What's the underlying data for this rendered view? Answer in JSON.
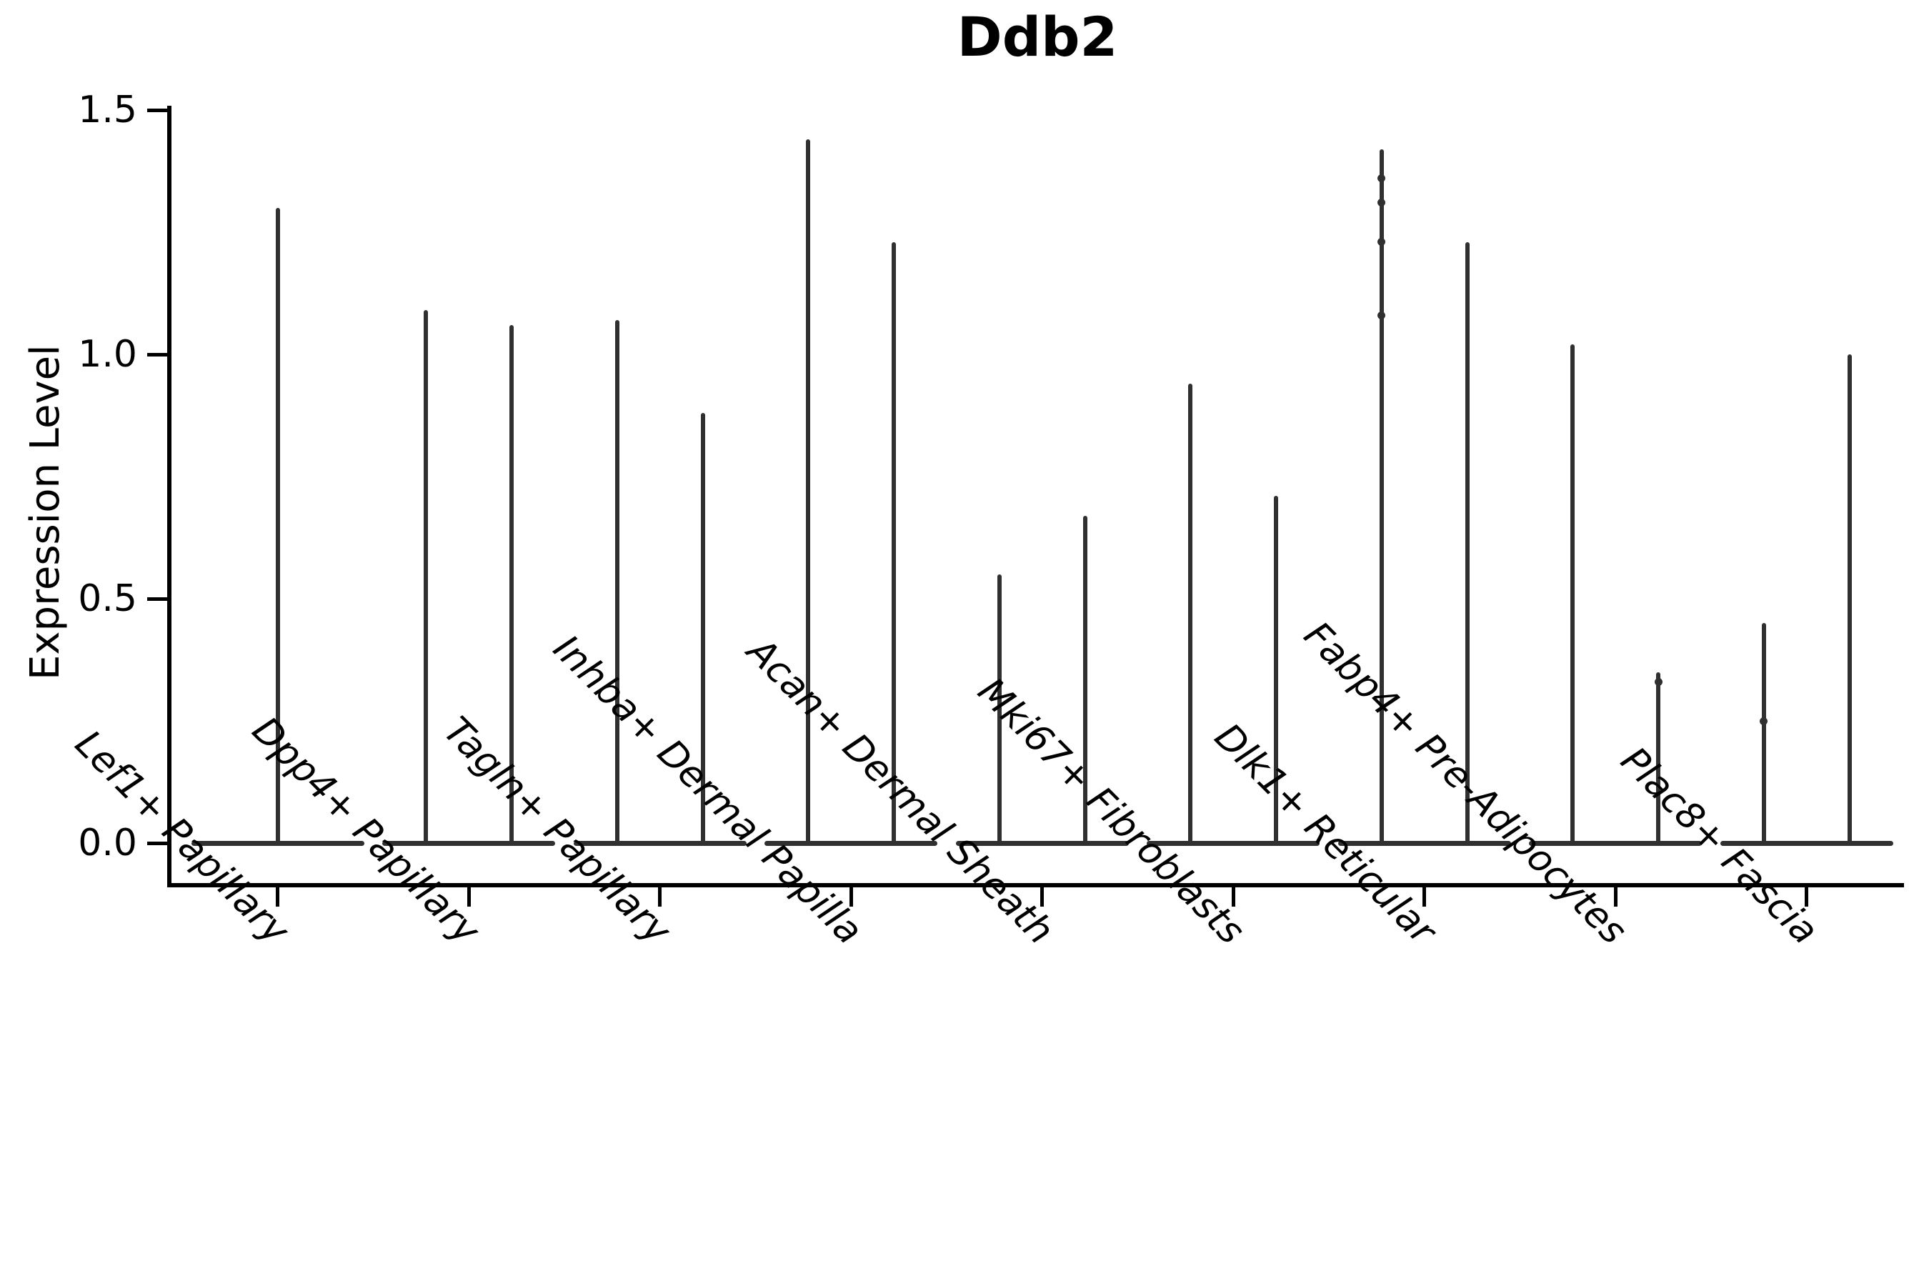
{
  "chart_data": {
    "type": "violin",
    "title": "Ddb2",
    "ylabel": "Expression Level",
    "xlabel": "",
    "ylim": [
      -0.08,
      1.55
    ],
    "yticks": [
      0.0,
      0.5,
      1.0,
      1.5
    ],
    "ytick_labels": [
      "0.0",
      "0.5",
      "1.0",
      "1.5"
    ],
    "grid": false,
    "legend": "none",
    "x_tick_label_rotation_deg": 45,
    "categories": [
      "Lef1+ Papillary",
      "Dpp4+ Papillary",
      "Tagln+ Papillary",
      "Inhba+ Dermal Papilla",
      "Acan+ Dermal Sheath",
      "Mki67+ Fibroblasts",
      "Dlk1+ Reticular",
      "Fabp4+ Pre-Adipocytes",
      "Plac8+ Fascia"
    ],
    "violin_maxima_per_category": [
      [
        1.3
      ],
      [
        1.09,
        1.06
      ],
      [
        1.07,
        0.88
      ],
      [
        1.44,
        1.23
      ],
      [
        0.55,
        0.67
      ],
      [
        0.94,
        0.71
      ],
      [
        1.42,
        1.23
      ],
      [
        1.02,
        0.35
      ],
      [
        0.45,
        1.0
      ]
    ],
    "density_bulk_at_zero": true,
    "small_bumps": [
      {
        "category_index": 6,
        "violin_index": 0,
        "values": [
          1.36,
          1.31,
          1.23,
          1.08
        ]
      },
      {
        "category_index": 7,
        "violin_index": 1,
        "values": [
          0.33
        ]
      },
      {
        "category_index": 8,
        "violin_index": 0,
        "values": [
          0.25
        ]
      }
    ],
    "colors": {
      "violin_line": "#303030",
      "axis": "#000000",
      "text": "#000000",
      "background": "#ffffff"
    }
  }
}
